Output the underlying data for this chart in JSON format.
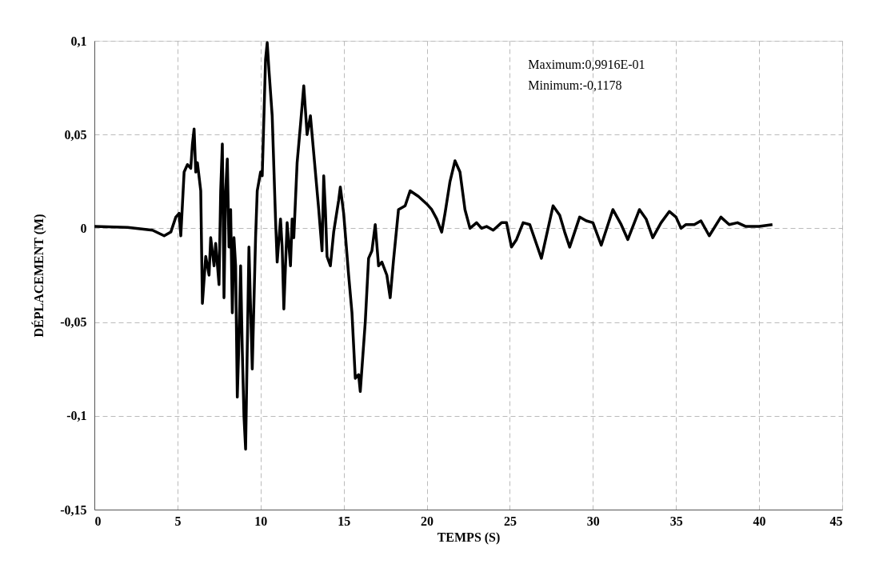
{
  "chart_data": {
    "type": "line",
    "xlabel": "TEMPS (S)",
    "ylabel": "DÉPLACEMENT (M)",
    "annotations": [
      "Maximum:0,9916E-01",
      "Minimum:-0,1178"
    ],
    "xlim": [
      0,
      45
    ],
    "xticks": [
      0,
      5,
      10,
      15,
      20,
      25,
      30,
      35,
      40,
      45
    ],
    "ylim": [
      -0.15,
      0.1
    ],
    "yticks": [
      {
        "value": -0.15,
        "label": "-0,15"
      },
      {
        "value": -0.1,
        "label": "-0,1"
      },
      {
        "value": -0.05,
        "label": "-0,05"
      },
      0,
      {
        "value": 0.05,
        "label": "0,05"
      },
      {
        "value": 0.1,
        "label": "0,1"
      }
    ],
    "grid": true,
    "line_style": "solid",
    "marker": "none",
    "x": [
      0,
      2,
      3.5,
      4.2,
      4.6,
      4.9,
      5.1,
      5.2,
      5.4,
      5.6,
      5.8,
      5.9,
      6.0,
      6.1,
      6.2,
      6.4,
      6.5,
      6.7,
      6.9,
      7.0,
      7.2,
      7.3,
      7.5,
      7.6,
      7.7,
      7.8,
      7.9,
      8.0,
      8.1,
      8.2,
      8.3,
      8.4,
      8.5,
      8.6,
      8.7,
      8.8,
      8.9,
      9.0,
      9.1,
      9.3,
      9.5,
      9.7,
      9.8,
      10.0,
      10.1,
      10.3,
      10.4,
      10.5,
      10.7,
      10.9,
      11.0,
      11.2,
      11.3,
      11.4,
      11.6,
      11.8,
      11.9,
      12.0,
      12.2,
      12.4,
      12.6,
      12.8,
      13.0,
      13.2,
      13.5,
      13.7,
      13.8,
      13.9,
      14.0,
      14.2,
      14.4,
      14.7,
      14.8,
      15.0,
      15.3,
      15.5,
      15.7,
      15.9,
      16.0,
      16.3,
      16.5,
      16.7,
      16.9,
      17.1,
      17.3,
      17.6,
      17.8,
      18.0,
      18.3,
      18.7,
      19.0,
      19.5,
      20.0,
      20.3,
      20.6,
      20.9,
      21.1,
      21.4,
      21.7,
      22.0,
      22.3,
      22.6,
      23.0,
      23.3,
      23.6,
      24.0,
      24.5,
      24.8,
      25.1,
      25.4,
      25.8,
      26.2,
      26.9,
      27.6,
      28.0,
      28.3,
      28.6,
      29.2,
      29.6,
      30.0,
      30.5,
      31.2,
      31.7,
      32.1,
      32.8,
      33.2,
      33.6,
      34.1,
      34.6,
      35.0,
      35.3,
      35.6,
      36.1,
      36.5,
      37.0,
      37.7,
      38.2,
      38.7,
      39.2,
      40.0,
      40.8
    ],
    "series": [
      {
        "color": "#000000",
        "values": [
          0.001,
          0.0005,
          -0.001,
          -0.004,
          -0.002,
          0.006,
          0.008,
          -0.004,
          0.03,
          0.034,
          0.032,
          0.045,
          0.053,
          0.03,
          0.035,
          0.02,
          -0.04,
          -0.015,
          -0.025,
          -0.005,
          -0.02,
          -0.008,
          -0.03,
          0.02,
          0.045,
          -0.037,
          0.02,
          0.037,
          -0.01,
          0.01,
          -0.045,
          -0.005,
          -0.02,
          -0.09,
          -0.06,
          -0.02,
          -0.065,
          -0.1,
          -0.1178,
          -0.01,
          -0.075,
          -0.005,
          0.02,
          0.03,
          0.028,
          0.09,
          0.099,
          0.085,
          0.06,
          0.005,
          -0.018,
          0.005,
          -0.01,
          -0.043,
          0.003,
          -0.02,
          0.005,
          -0.005,
          0.035,
          0.055,
          0.076,
          0.05,
          0.06,
          0.04,
          0.01,
          -0.012,
          0.028,
          0.01,
          -0.015,
          -0.02,
          -0.002,
          0.015,
          0.022,
          0.008,
          -0.025,
          -0.045,
          -0.08,
          -0.078,
          -0.087,
          -0.05,
          -0.016,
          -0.012,
          0.002,
          -0.02,
          -0.018,
          -0.025,
          -0.037,
          -0.017,
          0.01,
          0.012,
          0.02,
          0.017,
          0.013,
          0.01,
          0.005,
          -0.002,
          0.008,
          0.025,
          0.036,
          0.03,
          0.01,
          0.0,
          0.003,
          0.0,
          0.001,
          -0.001,
          0.003,
          0.003,
          -0.01,
          -0.006,
          0.003,
          0.002,
          -0.016,
          0.012,
          0.007,
          -0.002,
          -0.01,
          0.006,
          0.004,
          0.003,
          -0.009,
          0.01,
          0.002,
          -0.006,
          0.01,
          0.005,
          -0.005,
          0.003,
          0.009,
          0.006,
          0.0,
          0.002,
          0.002,
          0.004,
          -0.004,
          0.006,
          0.002,
          0.003,
          0.001,
          0.001,
          0.002
        ]
      }
    ]
  }
}
